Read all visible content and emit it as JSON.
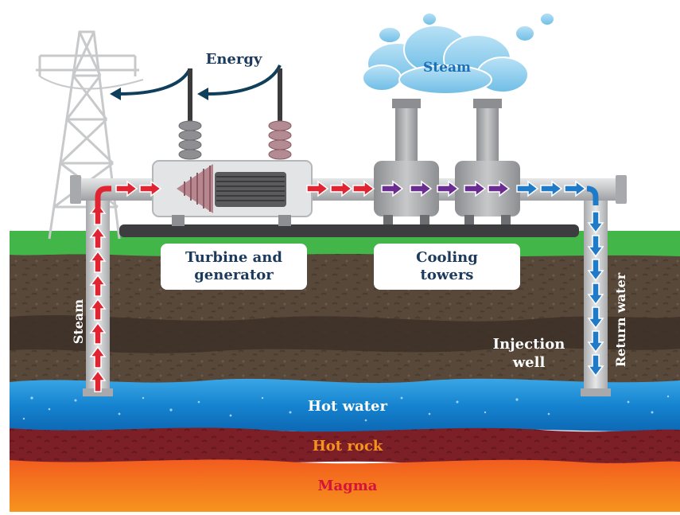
{
  "labels": {
    "energy": "Energy",
    "steam_top": "Steam",
    "turbine_line1": "Turbine and",
    "turbine_line2": "generator",
    "cooling_line1": "Cooling",
    "cooling_line2": "towers",
    "steam_side": "Steam",
    "injection_line1": "Injection",
    "injection_line2": "well",
    "return_water": "Return water",
    "hot_water": "Hot water",
    "hot_rock": "Hot rock",
    "magma": "Magma"
  },
  "colors": {
    "hot_flow": "#e02432",
    "cooling_flow": "#6a2c91",
    "cold_flow": "#1f7ac8",
    "energy_arrow": "#0f3f5a",
    "pipe": "#c9cacb",
    "grass": "#43b649",
    "soil": "#5a4a3e",
    "water": "#1d8fd6",
    "hot_rock": "#7a1f26",
    "magma": "#f26a1f",
    "label_navy": "#1b3a5c",
    "label_orange": "#f7941d",
    "label_red": "#d4143a",
    "steam_cloud": "#7cc8ec"
  }
}
